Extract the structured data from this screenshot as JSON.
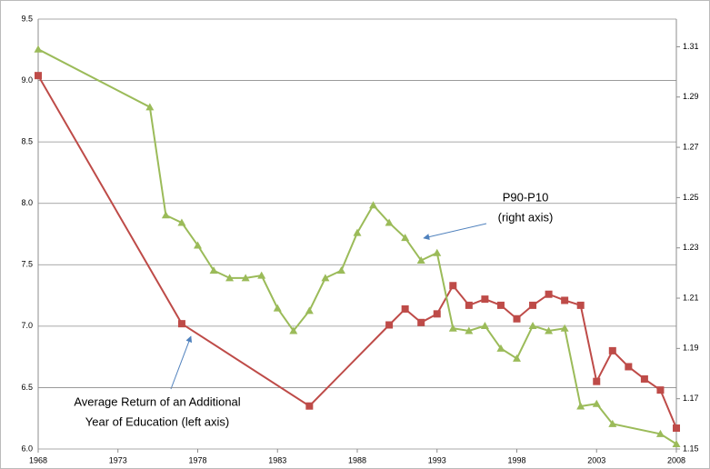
{
  "chart_data": {
    "type": "line",
    "xlim": [
      1968,
      2008
    ],
    "xticks": [
      1968,
      1973,
      1978,
      1983,
      1988,
      1993,
      1998,
      2003,
      2008
    ],
    "ylim": [
      6,
      9.5
    ],
    "yticks": [
      {
        "value": 6,
        "label": "6.0"
      },
      6.5,
      {
        "value": 7,
        "label": "7.0"
      },
      7.5,
      {
        "value": 8,
        "label": "8.0"
      },
      8.5,
      {
        "value": 9,
        "label": "9.0"
      },
      9.5
    ],
    "y2lim": [
      1.15,
      1.321
    ],
    "y2ticks": [
      1.15,
      1.17,
      1.19,
      1.21,
      1.23,
      1.25,
      1.27,
      1.29,
      1.31
    ],
    "grid": true,
    "series": [
      {
        "color": "#be4b48",
        "marker": "square",
        "x": [
          1968,
          1977,
          1985,
          1990,
          1991,
          1992,
          1993,
          1994,
          1995,
          1996,
          1997,
          1998,
          1999,
          2000,
          2001,
          2002,
          2003,
          2004,
          2005,
          2006,
          2007,
          2008
        ],
        "values": [
          9.04,
          7.02,
          6.35,
          7.01,
          7.14,
          7.03,
          7.1,
          7.33,
          7.17,
          7.22,
          7.17,
          7.06,
          7.17,
          7.26,
          7.21,
          7.17,
          6.55,
          6.8,
          6.67,
          6.57,
          6.48,
          6.17
        ]
      },
      {
        "color": "#9bbb59",
        "marker": "triangle",
        "axis": "y2",
        "x": [
          1968,
          1975,
          1976,
          1977,
          1978,
          1979,
          1980,
          1981,
          1982,
          1983,
          1984,
          1985,
          1986,
          1987,
          1988,
          1989,
          1990,
          1991,
          1992,
          1993,
          1994,
          1995,
          1996,
          1997,
          1998,
          1999,
          2000,
          2001,
          2002,
          2003,
          2004,
          2007,
          2008
        ],
        "values": [
          1.309,
          1.286,
          1.243,
          1.24,
          1.231,
          1.221,
          1.218,
          1.218,
          1.219,
          1.206,
          1.197,
          1.205,
          1.218,
          1.221,
          1.236,
          1.247,
          1.24,
          1.234,
          1.225,
          1.228,
          1.198,
          1.197,
          1.199,
          1.19,
          1.186,
          1.199,
          1.197,
          1.198,
          1.167,
          1.168,
          1.16,
          1.156,
          1.152
        ]
      }
    ],
    "annotations": [
      {
        "lines": [
          "P90-P10",
          "(right axis)"
        ]
      },
      {
        "lines": [
          "Average Return of an Additional",
          "Year of Education (left axis)"
        ]
      }
    ]
  }
}
